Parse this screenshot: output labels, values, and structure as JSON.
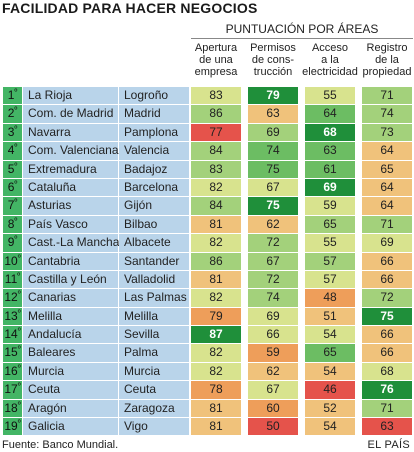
{
  "title": "FACILIDAD PARA HACER NEGOCIOS",
  "group_header": "PUNTUACIÓN POR ÁREAS",
  "footer": {
    "source": "Fuente: Banco Mundial.",
    "brand": "EL PAÍS"
  },
  "colors": {
    "rank_bg": "#43b565",
    "region_bg": "#b9d4ea",
    "best": "#1f8f3a",
    "good_dark": "#6cbd63",
    "good": "#a3d17b",
    "mid_light": "#d8e38e",
    "mid": "#f0c27b",
    "low": "#ee9e5a",
    "worst": "#e5534b"
  },
  "chart_data": {
    "type": "table",
    "title": "FACILIDAD PARA HACER NEGOCIOS",
    "group_label": "PUNTUACIÓN POR ÁREAS",
    "columns": [
      [
        "Apertura",
        "de una",
        "empresa"
      ],
      [
        "Permisos",
        "de cons-",
        "trucción"
      ],
      [
        "Acceso",
        "a la",
        "electricidad"
      ],
      [
        "Registro",
        "de la",
        "propiedad"
      ]
    ],
    "rows": [
      {
        "rank": "1",
        "region": "La Rioja",
        "capital": "Logroño",
        "scores": [
          83,
          79,
          55,
          71
        ]
      },
      {
        "rank": "2",
        "region": "Com. de Madrid",
        "capital": "Madrid",
        "scores": [
          86,
          63,
          64,
          74
        ]
      },
      {
        "rank": "3",
        "region": "Navarra",
        "capital": "Pamplona",
        "scores": [
          77,
          69,
          68,
          73
        ]
      },
      {
        "rank": "4",
        "region": "Com. Valenciana",
        "capital": "Valencia",
        "scores": [
          84,
          74,
          63,
          64
        ]
      },
      {
        "rank": "5",
        "region": "Extremadura",
        "capital": "Badajoz",
        "scores": [
          83,
          75,
          61,
          65
        ]
      },
      {
        "rank": "6",
        "region": "Cataluña",
        "capital": "Barcelona",
        "scores": [
          82,
          67,
          69,
          64
        ]
      },
      {
        "rank": "7",
        "region": "Asturias",
        "capital": "Gijón",
        "scores": [
          84,
          75,
          59,
          64
        ]
      },
      {
        "rank": "8",
        "region": "País Vasco",
        "capital": "Bilbao",
        "scores": [
          81,
          62,
          65,
          71
        ]
      },
      {
        "rank": "9",
        "region": "Cast.-La Mancha",
        "capital": "Albacete",
        "scores": [
          82,
          72,
          55,
          69
        ]
      },
      {
        "rank": "10",
        "region": "Cantabria",
        "capital": "Santander",
        "scores": [
          86,
          67,
          57,
          66
        ]
      },
      {
        "rank": "11",
        "region": "Castilla y León",
        "capital": "Valladolid",
        "scores": [
          81,
          72,
          57,
          66
        ]
      },
      {
        "rank": "12",
        "region": "Canarias",
        "capital": "Las Palmas",
        "scores": [
          82,
          74,
          48,
          72
        ]
      },
      {
        "rank": "13",
        "region": "Melilla",
        "capital": "Melilla",
        "scores": [
          79,
          69,
          51,
          75
        ]
      },
      {
        "rank": "14",
        "region": "Andalucía",
        "capital": "Sevilla",
        "scores": [
          87,
          66,
          54,
          66
        ]
      },
      {
        "rank": "15",
        "region": "Baleares",
        "capital": "Palma",
        "scores": [
          82,
          59,
          65,
          66
        ]
      },
      {
        "rank": "16",
        "region": "Murcia",
        "capital": "Murcia",
        "scores": [
          82,
          62,
          54,
          68
        ]
      },
      {
        "rank": "17",
        "region": "Ceuta",
        "capital": "Ceuta",
        "scores": [
          78,
          67,
          46,
          76
        ]
      },
      {
        "rank": "18",
        "region": "Aragón",
        "capital": "Zaragoza",
        "scores": [
          81,
          60,
          52,
          71
        ]
      },
      {
        "rank": "19",
        "region": "Galicia",
        "capital": "Vigo",
        "scores": [
          81,
          50,
          54,
          63
        ]
      }
    ],
    "colors": [
      [
        "mid_light",
        "best",
        "mid_light",
        "good"
      ],
      [
        "good",
        "mid",
        "good_dark",
        "good"
      ],
      [
        "worst",
        "good",
        "best",
        "good"
      ],
      [
        "good",
        "good_dark",
        "good_dark",
        "mid"
      ],
      [
        "good",
        "good_dark",
        "good_dark",
        "mid"
      ],
      [
        "mid_light",
        "mid_light",
        "best",
        "mid"
      ],
      [
        "good",
        "best",
        "mid_light",
        "mid"
      ],
      [
        "mid",
        "mid",
        "good",
        "good"
      ],
      [
        "mid_light",
        "good",
        "mid_light",
        "mid_light"
      ],
      [
        "good",
        "good",
        "good",
        "mid"
      ],
      [
        "mid",
        "good",
        "mid_light",
        "mid"
      ],
      [
        "mid_light",
        "good",
        "low",
        "good"
      ],
      [
        "low",
        "mid_light",
        "mid",
        "best"
      ],
      [
        "best",
        "mid_light",
        "mid_light",
        "mid"
      ],
      [
        "mid_light",
        "low",
        "good_dark",
        "mid"
      ],
      [
        "mid_light",
        "mid",
        "mid",
        "mid_light"
      ],
      [
        "low",
        "mid_light",
        "worst",
        "best"
      ],
      [
        "mid",
        "low",
        "mid",
        "good"
      ],
      [
        "mid",
        "worst",
        "mid",
        "worst"
      ]
    ]
  }
}
